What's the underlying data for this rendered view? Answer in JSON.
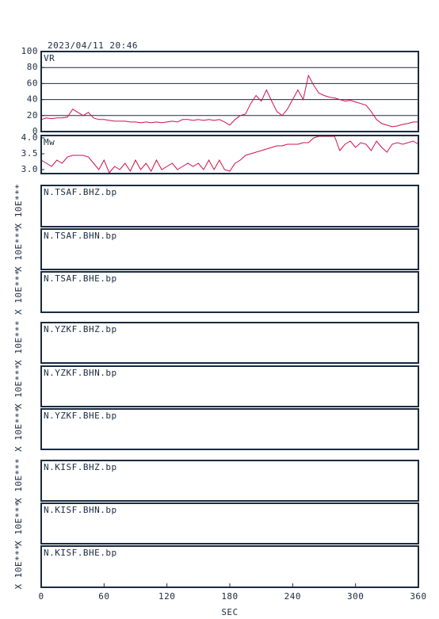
{
  "title": "2023/04/11 20:46",
  "chart_data": [
    {
      "type": "line",
      "label": "VR",
      "x": [
        0,
        5,
        10,
        15,
        20,
        25,
        30,
        35,
        40,
        45,
        50,
        55,
        60,
        65,
        70,
        75,
        80,
        85,
        90,
        95,
        100,
        105,
        110,
        115,
        120,
        125,
        130,
        135,
        140,
        145,
        150,
        155,
        160,
        165,
        170,
        175,
        180,
        185,
        190,
        195,
        200,
        205,
        210,
        215,
        220,
        225,
        230,
        235,
        240,
        245,
        250,
        255,
        260,
        265,
        270,
        275,
        280,
        285,
        290,
        295,
        300,
        305,
        310,
        315,
        320,
        325,
        330,
        335,
        340,
        345,
        350,
        355,
        360
      ],
      "series": [
        {
          "color": "#d0104c",
          "values": [
            15,
            17,
            16,
            17,
            17,
            18,
            28,
            24,
            20,
            24,
            17,
            15,
            15,
            14,
            13,
            13,
            13,
            12,
            12,
            11,
            12,
            11,
            12,
            11,
            12,
            13,
            12,
            15,
            15,
            14,
            15,
            14,
            15,
            14,
            15,
            12,
            8,
            15,
            20,
            22,
            35,
            45,
            38,
            52,
            38,
            25,
            20,
            28,
            40,
            52,
            40,
            70,
            58,
            48,
            45,
            43,
            42,
            40,
            38,
            39,
            37,
            35,
            33,
            25,
            15,
            10,
            8,
            6,
            7,
            9,
            10,
            12,
            12
          ]
        }
      ],
      "xlim": [
        0,
        360
      ],
      "ylim": [
        0,
        100
      ],
      "yticks": [
        0,
        20,
        40,
        60,
        80,
        100
      ],
      "grid": true
    },
    {
      "type": "line",
      "label": "Mw",
      "x": [
        0,
        5,
        10,
        15,
        20,
        25,
        30,
        35,
        40,
        45,
        50,
        55,
        60,
        65,
        70,
        75,
        80,
        85,
        90,
        95,
        100,
        105,
        110,
        115,
        120,
        125,
        130,
        135,
        140,
        145,
        150,
        155,
        160,
        165,
        170,
        175,
        180,
        185,
        190,
        195,
        200,
        205,
        210,
        215,
        220,
        225,
        230,
        235,
        240,
        245,
        250,
        255,
        260,
        265,
        270,
        275,
        280,
        285,
        290,
        295,
        300,
        305,
        310,
        315,
        320,
        325,
        330,
        335,
        340,
        345,
        350,
        355,
        360
      ],
      "series": [
        {
          "color": "#d0104c",
          "values": [
            3.3,
            3.2,
            3.1,
            3.3,
            3.2,
            3.4,
            3.45,
            3.45,
            3.45,
            3.4,
            3.2,
            3.0,
            3.3,
            2.9,
            3.1,
            3.0,
            3.2,
            2.95,
            3.3,
            3.0,
            3.2,
            2.95,
            3.3,
            3.0,
            3.1,
            3.2,
            3.0,
            3.1,
            3.2,
            3.1,
            3.2,
            3.0,
            3.3,
            3.0,
            3.3,
            3.0,
            2.95,
            3.2,
            3.3,
            3.45,
            3.5,
            3.55,
            3.6,
            3.65,
            3.7,
            3.75,
            3.75,
            3.8,
            3.8,
            3.8,
            3.85,
            3.85,
            4.0,
            4.05,
            4.05,
            4.05,
            4.05,
            3.6,
            3.8,
            3.9,
            3.7,
            3.85,
            3.8,
            3.6,
            3.9,
            3.7,
            3.55,
            3.8,
            3.85,
            3.8,
            3.85,
            3.9,
            3.8
          ]
        }
      ],
      "xlim": [
        0,
        360
      ],
      "ylim": [
        2.875,
        4.075
      ],
      "yticks": [
        {
          "value": 3,
          "label": "3.0"
        },
        {
          "value": 3.5,
          "label": "3.5"
        },
        {
          "value": 4,
          "label": "4.0"
        }
      ],
      "grid": false
    }
  ],
  "panels": [
    {
      "label": "N.TSAF.BHZ.bp",
      "ylabel": "X 10E***"
    },
    {
      "label": "N.TSAF.BHN.bp",
      "ylabel": "X 10E***"
    },
    {
      "label": "N.TSAF.BHE.bp",
      "ylabel": "X 10E***"
    },
    {
      "label": "N.YZKF.BHZ.bp",
      "ylabel": "X 10E***"
    },
    {
      "label": "N.YZKF.BHN.bp",
      "ylabel": "X 10E***"
    },
    {
      "label": "N.YZKF.BHE.bp",
      "ylabel": "X 10E***"
    },
    {
      "label": "N.KISF.BHZ.bp",
      "ylabel": "X 10E***"
    },
    {
      "label": "N.KISF.BHN.bp",
      "ylabel": "X 10E***"
    },
    {
      "label": "N.KISF.BHE.bp",
      "ylabel": "X 10E***"
    }
  ],
  "xaxis": {
    "label": "SEC",
    "xlim": [
      0,
      360
    ],
    "xticks": [
      0,
      60,
      120,
      180,
      240,
      300,
      360
    ]
  }
}
